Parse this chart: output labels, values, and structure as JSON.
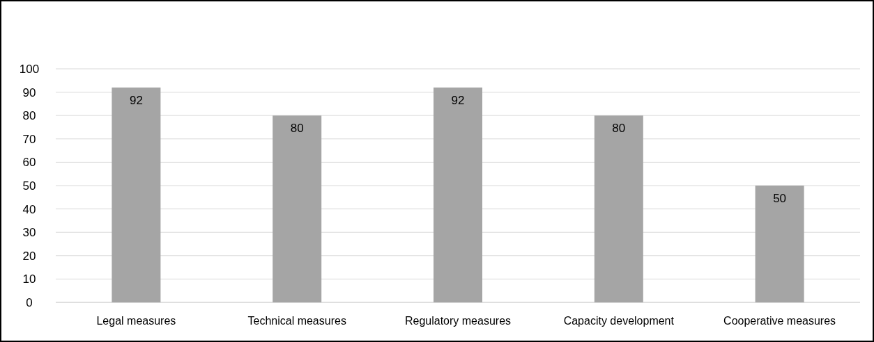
{
  "chart_data": {
    "type": "bar",
    "categories": [
      "Legal measures",
      "Technical measures",
      "Regulatory measures",
      "Capacity development",
      "Cooperative measures"
    ],
    "values": [
      92,
      80,
      92,
      80,
      50
    ],
    "color": "#a5a5a5",
    "ylim": [
      0,
      100
    ],
    "yticks": [
      0,
      10,
      20,
      30,
      40,
      50,
      60,
      70,
      80,
      90,
      100
    ],
    "grid": "y",
    "data_labels": true
  }
}
